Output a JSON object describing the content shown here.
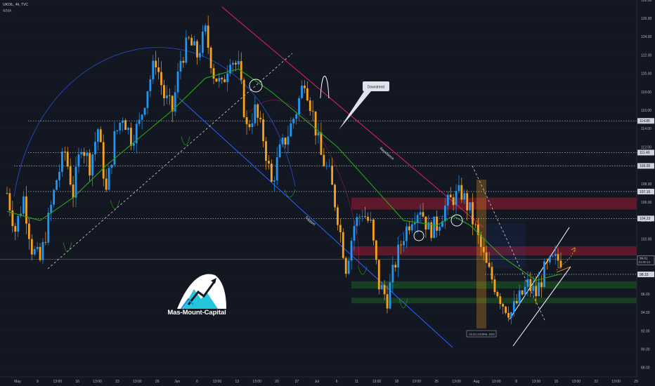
{
  "header": {
    "symbol_line": "UKOIL, 4h, TVC",
    "indicator": "WMA"
  },
  "logo": {
    "text": "Mas-Mount-Capital"
  },
  "annotations": {
    "downtrend_callout": "Downtrend",
    "resistance_label": "Resistance",
    "support_label": "Support",
    "measure_label": "-16.23 (-14.95%) -1623"
  },
  "colors": {
    "background": "#131722",
    "up_candle": "#2196f3",
    "down_candle": "#f7a21b",
    "ma_line": "#26a617",
    "resistance_line": "#e91e63",
    "support_line": "#2962ff",
    "zone_red": "#9b1c31",
    "zone_green": "#1b5e20",
    "measure_box": "#f7a21b"
  },
  "chart_data": {
    "type": "candlestick",
    "title": "UKOIL, 4h, TVC",
    "ylim": [
      87,
      128
    ],
    "y_ticks": [
      88.0,
      90.0,
      92.0,
      94.0,
      96.0,
      98.0,
      100.0,
      102.0,
      104.0,
      106.0,
      108.0,
      110.0,
      112.0,
      114.0,
      116.0,
      118.0,
      120.0,
      122.0,
      124.0,
      126.0,
      128.0
    ],
    "x_ticks": [
      "May",
      "9",
      "13:00",
      "16",
      "13:00",
      "23",
      "13:00",
      "26",
      "Jun",
      "6",
      "13:00",
      "13",
      "13:00",
      "20",
      "27",
      "Jul",
      "6",
      "11",
      "13:00",
      "18",
      "13:00",
      "25",
      "13:00",
      "Aug",
      "13:00",
      "8",
      "13:00",
      "15",
      "13:00",
      "22",
      "13:00",
      "29"
    ],
    "price_labels": [
      {
        "value": 114.85,
        "label": "114.85"
      },
      {
        "value": 111.4,
        "label": "111.40"
      },
      {
        "value": 109.95,
        "label": "109.95"
      },
      {
        "value": 107.16,
        "label": "107.16"
      },
      {
        "value": 104.23,
        "label": "104.23"
      },
      {
        "value": 98.15,
        "label": "98.15"
      }
    ],
    "current_price": {
      "value": 99.81,
      "label": "99.81",
      "countdown": "02:00:12"
    },
    "levels": [
      114.85,
      111.4,
      109.95,
      107.16,
      104.23,
      98.15
    ],
    "zones": [
      {
        "kind": "resistance",
        "from": 106.5,
        "to": 105.2
      },
      {
        "kind": "resistance",
        "from": 101.2,
        "to": 100.2
      },
      {
        "kind": "support",
        "from": 97.4,
        "to": 96.6
      },
      {
        "kind": "support",
        "from": 95.6,
        "to": 95.0
      }
    ],
    "close_path": [
      [
        0,
        107
      ],
      [
        3,
        103
      ],
      [
        6,
        106.5
      ],
      [
        9,
        101
      ],
      [
        12,
        99.6
      ],
      [
        15,
        104
      ],
      [
        18,
        108.5
      ],
      [
        21,
        111.5
      ],
      [
        24,
        107
      ],
      [
        27,
        112.5
      ],
      [
        30,
        110
      ],
      [
        33,
        114
      ],
      [
        36,
        107
      ],
      [
        39,
        113
      ],
      [
        42,
        115.5
      ],
      [
        45,
        113
      ],
      [
        48,
        114.5
      ],
      [
        51,
        118.5
      ],
      [
        54,
        121.5
      ],
      [
        57,
        117.5
      ],
      [
        60,
        116
      ],
      [
        63,
        121.5
      ],
      [
        66,
        123.5
      ],
      [
        69,
        122
      ],
      [
        72,
        124.5
      ],
      [
        75,
        120
      ],
      [
        78,
        118.5
      ],
      [
        81,
        122
      ],
      [
        84,
        120.5
      ],
      [
        87,
        114
      ],
      [
        90,
        116
      ],
      [
        93,
        113
      ],
      [
        96,
        108
      ],
      [
        99,
        111.5
      ],
      [
        102,
        113.5
      ],
      [
        105,
        116
      ],
      [
        108,
        119.5
      ],
      [
        111,
        115.5
      ],
      [
        114,
        111
      ],
      [
        117,
        109
      ],
      [
        120,
        104.5
      ],
      [
        123,
        99
      ],
      [
        126,
        103.5
      ],
      [
        129,
        105
      ],
      [
        132,
        103.5
      ],
      [
        135,
        97
      ],
      [
        138,
        95.5
      ],
      [
        141,
        99.5
      ],
      [
        144,
        102.5
      ],
      [
        147,
        104.5
      ],
      [
        150,
        105.5
      ],
      [
        153,
        103
      ],
      [
        156,
        103.5
      ],
      [
        159,
        105.5
      ],
      [
        162,
        106.5
      ],
      [
        165,
        107
      ],
      [
        168,
        105
      ],
      [
        171,
        102
      ],
      [
        174,
        99
      ],
      [
        177,
        97
      ],
      [
        180,
        95
      ],
      [
        183,
        94
      ],
      [
        186,
        95.5
      ],
      [
        189,
        97
      ],
      [
        192,
        96
      ],
      [
        195,
        98.5
      ],
      [
        198,
        99.5
      ],
      [
        201,
        99.81
      ]
    ],
    "ma_path": [
      [
        0,
        105
      ],
      [
        12,
        104
      ],
      [
        24,
        106.5
      ],
      [
        36,
        110
      ],
      [
        48,
        113
      ],
      [
        60,
        116
      ],
      [
        72,
        119.5
      ],
      [
        84,
        120.5
      ],
      [
        96,
        118
      ],
      [
        108,
        115
      ],
      [
        120,
        112
      ],
      [
        132,
        108
      ],
      [
        144,
        104
      ],
      [
        156,
        103.5
      ],
      [
        162,
        104.5
      ],
      [
        168,
        103.5
      ],
      [
        180,
        100
      ],
      [
        192,
        97.5
      ],
      [
        201,
        98.2
      ]
    ]
  }
}
